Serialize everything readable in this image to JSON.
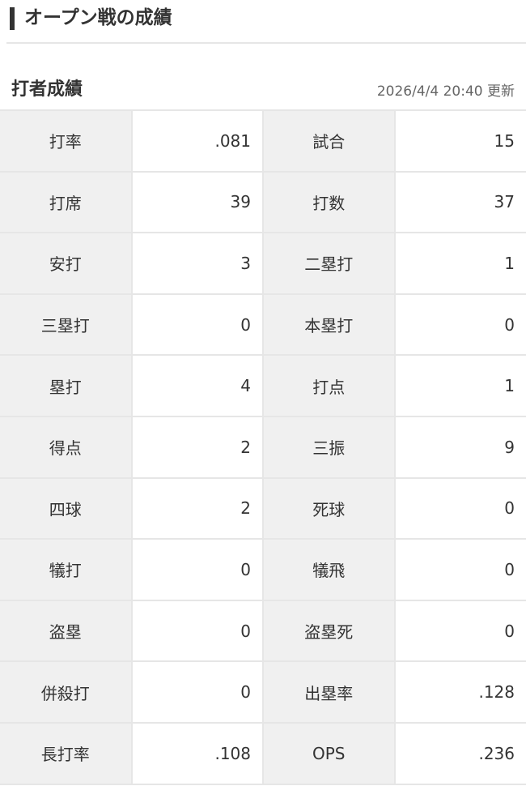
{
  "header": {
    "title": "オープン戦の成績"
  },
  "section": {
    "title": "打者成績",
    "updated": "2026/4/4 20:40 更新"
  },
  "stats": [
    [
      {
        "label": "打率",
        "value": ".081"
      },
      {
        "label": "試合",
        "value": "15"
      }
    ],
    [
      {
        "label": "打席",
        "value": "39"
      },
      {
        "label": "打数",
        "value": "37"
      }
    ],
    [
      {
        "label": "安打",
        "value": "3"
      },
      {
        "label": "二塁打",
        "value": "1"
      }
    ],
    [
      {
        "label": "三塁打",
        "value": "0"
      },
      {
        "label": "本塁打",
        "value": "0"
      }
    ],
    [
      {
        "label": "塁打",
        "value": "4"
      },
      {
        "label": "打点",
        "value": "1"
      }
    ],
    [
      {
        "label": "得点",
        "value": "2"
      },
      {
        "label": "三振",
        "value": "9"
      }
    ],
    [
      {
        "label": "四球",
        "value": "2"
      },
      {
        "label": "死球",
        "value": "0"
      }
    ],
    [
      {
        "label": "犠打",
        "value": "0"
      },
      {
        "label": "犠飛",
        "value": "0"
      }
    ],
    [
      {
        "label": "盗塁",
        "value": "0"
      },
      {
        "label": "盗塁死",
        "value": "0"
      }
    ],
    [
      {
        "label": "併殺打",
        "value": "0"
      },
      {
        "label": "出塁率",
        "value": ".128"
      }
    ],
    [
      {
        "label": "長打率",
        "value": ".108"
      },
      {
        "label": "OPS",
        "value": ".236"
      }
    ]
  ]
}
